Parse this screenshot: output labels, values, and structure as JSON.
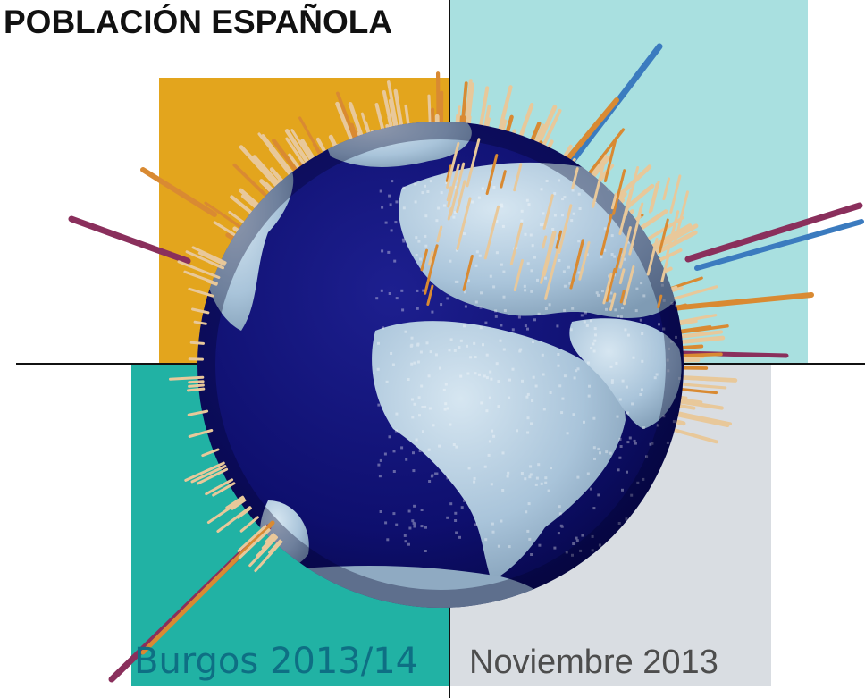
{
  "title": "POBLACIÓN ESPAÑOLA",
  "footer": {
    "event": "Burgos 2013/14",
    "date": "Noviembre 2013"
  },
  "illustration": {
    "icon": "population-globe-icon",
    "colors": {
      "panel_top_left": "#e3a51d",
      "panel_top_right": "#a9e0e0",
      "panel_bottom_left": "#21b2a4",
      "panel_bottom_right": "#d9dde2",
      "ocean": "#0e0f6e",
      "land": "#a9c4da",
      "spike_tan": "#e8c89a",
      "spike_orange": "#d98a32",
      "spike_blue": "#3b7bbf",
      "spike_purple": "#8a2f5c"
    }
  }
}
